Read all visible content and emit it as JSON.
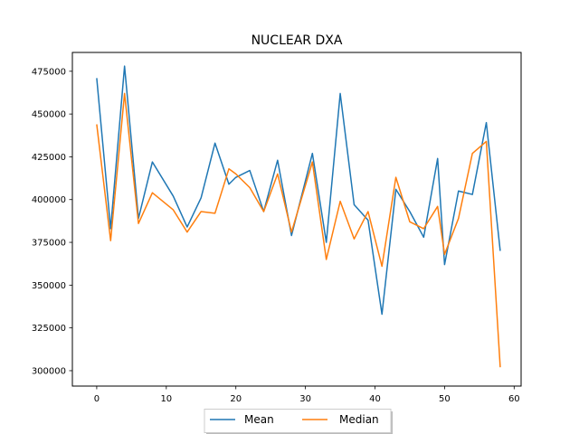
{
  "chart_data": {
    "type": "line",
    "title": "NUCLEAR DXA",
    "xlabel": "",
    "ylabel": "",
    "xlim": [
      -3.5,
      61
    ],
    "ylim": [
      291000,
      486000
    ],
    "xticks": [
      0,
      10,
      20,
      30,
      40,
      50,
      60
    ],
    "yticks": [
      300000,
      325000,
      350000,
      375000,
      400000,
      425000,
      450000,
      475000
    ],
    "grid": false,
    "legend": "bottom-center",
    "series": [
      {
        "name": "Mean",
        "color": "#1f77b4",
        "x": [
          0,
          2,
          4,
          6,
          8,
          11,
          13,
          15,
          17,
          19,
          20,
          22,
          24,
          26,
          28,
          31,
          33,
          35,
          37,
          39,
          41,
          43,
          45,
          47,
          49,
          50,
          52,
          54,
          56,
          58
        ],
        "y": [
          471000,
          383000,
          478000,
          389000,
          422000,
          402000,
          384000,
          401000,
          433000,
          409000,
          413000,
          417000,
          393000,
          423000,
          379000,
          427000,
          375000,
          462000,
          397000,
          388000,
          333000,
          406000,
          393000,
          378000,
          424000,
          362000,
          405000,
          403000,
          445000,
          370000
        ]
      },
      {
        "name": "Median",
        "color": "#ff7f0e",
        "x": [
          0,
          2,
          4,
          6,
          8,
          11,
          13,
          15,
          17,
          19,
          20,
          22,
          24,
          26,
          28,
          31,
          33,
          35,
          37,
          39,
          41,
          43,
          45,
          47,
          49,
          50,
          52,
          54,
          56,
          58
        ],
        "y": [
          444000,
          376000,
          462000,
          386000,
          404000,
          394000,
          381000,
          393000,
          392000,
          418000,
          415000,
          407000,
          393000,
          415000,
          381000,
          422000,
          365000,
          399000,
          377000,
          393000,
          361000,
          413000,
          387000,
          383000,
          396000,
          368000,
          389000,
          427000,
          434000,
          302000
        ]
      }
    ]
  }
}
